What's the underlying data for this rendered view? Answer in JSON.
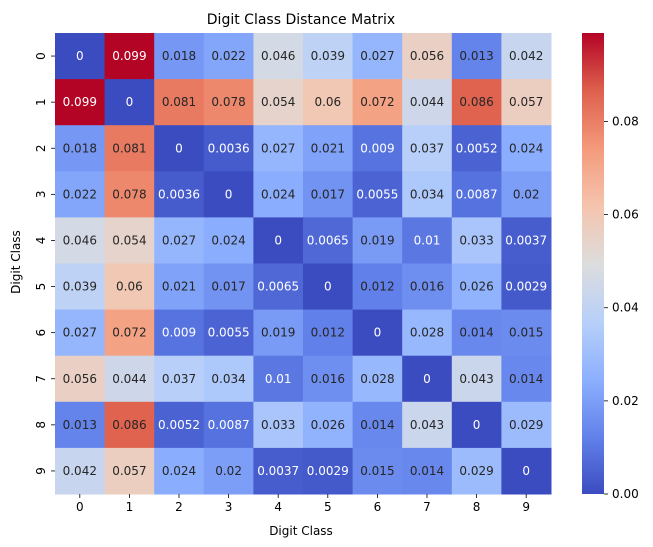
{
  "chart_data": {
    "type": "heatmap",
    "title": "Digit Class Distance Matrix",
    "xlabel": "Digit Class",
    "ylabel": "Digit Class",
    "x_categories": [
      "0",
      "1",
      "2",
      "3",
      "4",
      "5",
      "6",
      "7",
      "8",
      "9"
    ],
    "y_categories": [
      "0",
      "1",
      "2",
      "3",
      "4",
      "5",
      "6",
      "7",
      "8",
      "9"
    ],
    "values": [
      [
        0,
        0.099,
        0.018,
        0.022,
        0.046,
        0.039,
        0.027,
        0.056,
        0.013,
        0.042
      ],
      [
        0.099,
        0,
        0.081,
        0.078,
        0.054,
        0.06,
        0.072,
        0.044,
        0.086,
        0.057
      ],
      [
        0.018,
        0.081,
        0,
        0.0036,
        0.027,
        0.021,
        0.009,
        0.037,
        0.0052,
        0.024
      ],
      [
        0.022,
        0.078,
        0.0036,
        0,
        0.024,
        0.017,
        0.0055,
        0.034,
        0.0087,
        0.02
      ],
      [
        0.046,
        0.054,
        0.027,
        0.024,
        0,
        0.0065,
        0.019,
        0.01,
        0.033,
        0.0037
      ],
      [
        0.039,
        0.06,
        0.021,
        0.017,
        0.0065,
        0,
        0.012,
        0.016,
        0.026,
        0.0029
      ],
      [
        0.027,
        0.072,
        0.009,
        0.0055,
        0.019,
        0.012,
        0,
        0.028,
        0.014,
        0.015
      ],
      [
        0.056,
        0.044,
        0.037,
        0.034,
        0.01,
        0.016,
        0.028,
        0,
        0.043,
        0.014
      ],
      [
        0.013,
        0.086,
        0.0052,
        0.0087,
        0.033,
        0.026,
        0.014,
        0.043,
        0,
        0.029
      ],
      [
        0.042,
        0.057,
        0.024,
        0.02,
        0.0037,
        0.0029,
        0.015,
        0.014,
        0.029,
        0
      ]
    ],
    "value_labels": [
      [
        "0",
        "0.099",
        "0.018",
        "0.022",
        "0.046",
        "0.039",
        "0.027",
        "0.056",
        "0.013",
        "0.042"
      ],
      [
        "0.099",
        "0",
        "0.081",
        "0.078",
        "0.054",
        "0.06",
        "0.072",
        "0.044",
        "0.086",
        "0.057"
      ],
      [
        "0.018",
        "0.081",
        "0",
        "0.0036",
        "0.027",
        "0.021",
        "0.009",
        "0.037",
        "0.0052",
        "0.024"
      ],
      [
        "0.022",
        "0.078",
        "0.0036",
        "0",
        "0.024",
        "0.017",
        "0.0055",
        "0.034",
        "0.0087",
        "0.02"
      ],
      [
        "0.046",
        "0.054",
        "0.027",
        "0.024",
        "0",
        "0.0065",
        "0.019",
        "0.01",
        "0.033",
        "0.0037"
      ],
      [
        "0.039",
        "0.06",
        "0.021",
        "0.017",
        "0.0065",
        "0",
        "0.012",
        "0.016",
        "0.026",
        "0.0029"
      ],
      [
        "0.027",
        "0.072",
        "0.009",
        "0.0055",
        "0.019",
        "0.012",
        "0",
        "0.028",
        "0.014",
        "0.015"
      ],
      [
        "0.056",
        "0.044",
        "0.037",
        "0.034",
        "0.01",
        "0.016",
        "0.028",
        "0",
        "0.043",
        "0.014"
      ],
      [
        "0.013",
        "0.086",
        "0.0052",
        "0.0087",
        "0.033",
        "0.026",
        "0.014",
        "0.043",
        "0",
        "0.029"
      ],
      [
        "0.042",
        "0.057",
        "0.024",
        "0.02",
        "0.0037",
        "0.0029",
        "0.015",
        "0.014",
        "0.029",
        "0"
      ]
    ],
    "colormap": "coolwarm",
    "color_range": [
      0,
      0.099
    ],
    "colorbar_ticks": [
      0,
      0.02,
      0.04,
      0.06,
      0.08
    ],
    "colorbar_tick_labels": [
      "0.00",
      "0.02",
      "0.04",
      "0.06",
      "0.08"
    ]
  }
}
